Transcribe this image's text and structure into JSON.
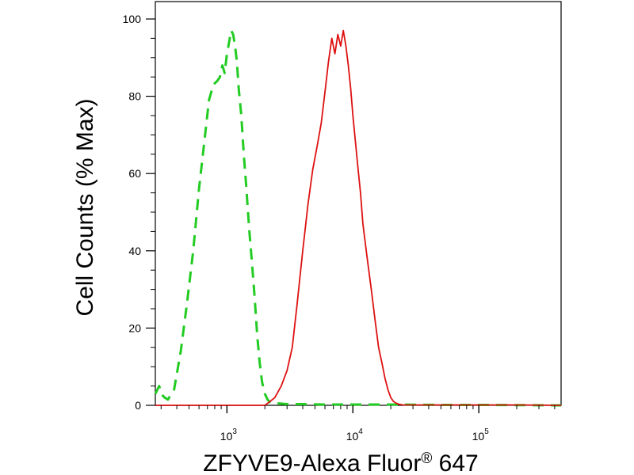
{
  "chart_data": {
    "type": "line",
    "title": "",
    "xlabel": "ZFYVE9-Alexa Fluor",
    "xlabel_mark": "®",
    "xlabel_suffix": " 647",
    "ylabel": "Cell Counts (% Max)",
    "x_scale": "log",
    "xlim": [
      270,
      450000
    ],
    "ylim": [
      0,
      100
    ],
    "y_ticks": [
      0,
      20,
      40,
      60,
      80,
      100
    ],
    "x_ticks": [
      {
        "value": 1000,
        "base": "10",
        "exp": "3"
      },
      {
        "value": 10000,
        "base": "10",
        "exp": "4"
      },
      {
        "value": 100000,
        "base": "10",
        "exp": "5"
      }
    ],
    "grid": false,
    "legend": "none",
    "series": [
      {
        "color": "#22cc22",
        "style": "dashed",
        "x": [
          270,
          290,
          300,
          320,
          340,
          380,
          430,
          480,
          540,
          600,
          660,
          720,
          780,
          840,
          880,
          920,
          960,
          1000,
          1040,
          1080,
          1120,
          1160,
          1200,
          1240,
          1300,
          1360,
          1420,
          1500,
          1580,
          1660,
          1740,
          1820,
          1900,
          2000,
          2100,
          2200,
          2300,
          2600,
          3000,
          4000,
          6000,
          10000,
          20000,
          50000,
          100000,
          450000
        ],
        "y": [
          3,
          5,
          3,
          2,
          1.5,
          4,
          14,
          26,
          40,
          56,
          68,
          79,
          83,
          84,
          85,
          88,
          86,
          91,
          94,
          97,
          96,
          93,
          89,
          82,
          75,
          65,
          57,
          46,
          37,
          28,
          18,
          11,
          6,
          3,
          1.5,
          0.8,
          0.5,
          0.5,
          0.3,
          0.3,
          0.2,
          0.2,
          0.2,
          0.1,
          0.1,
          0
        ]
      },
      {
        "color": "#dd1111",
        "style": "solid",
        "x": [
          270,
          1000,
          2000,
          2200,
          2400,
          2700,
          3000,
          3300,
          3600,
          4000,
          4400,
          4800,
          5200,
          5600,
          6000,
          6400,
          6800,
          7200,
          7600,
          8000,
          8400,
          8800,
          9200,
          9600,
          10000,
          10500,
          11000,
          11500,
          12000,
          13000,
          14000,
          15000,
          16000,
          17000,
          18000,
          19000,
          20000,
          21000,
          22000,
          23000,
          25000,
          30000,
          50000,
          100000,
          200000,
          450000
        ],
        "y": [
          0,
          0,
          0,
          1,
          2,
          5,
          9,
          15,
          26,
          40,
          52,
          61,
          67,
          73,
          81,
          89,
          95,
          91,
          96,
          93,
          97,
          93,
          88,
          82,
          75,
          68,
          61,
          55,
          47,
          38,
          30,
          22,
          15,
          11,
          7,
          4,
          2,
          1,
          0.6,
          0.3,
          0.1,
          0.1,
          0.1,
          0.1,
          0.1,
          0
        ]
      }
    ]
  }
}
